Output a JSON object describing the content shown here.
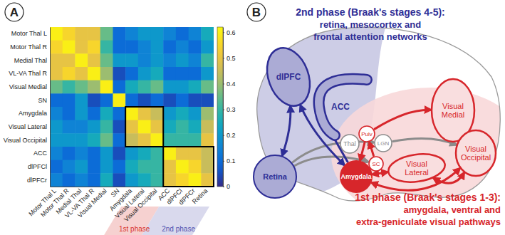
{
  "chart_data": {
    "type": "heatmap",
    "panel_label": "A",
    "rows": [
      "Motor Thal L",
      "Motor Thal R",
      "Medial Thal",
      "VL-VA Thal R",
      "Visual Medial",
      "SN",
      "Amygdala",
      "Visual Lateral",
      "Visual Occipital",
      "ACC",
      "dlPFCl",
      "dlPFCr"
    ],
    "columns": [
      "Motor Thal L",
      "Motor Thal R",
      "Medial Thal",
      "VL-VA Thal R",
      "Visual Medial",
      "SN",
      "Amygdala",
      "Visual Lateral",
      "Visual Occipital",
      "ACC",
      "dlPFCl",
      "dlPFCr",
      "Retina"
    ],
    "values": [
      [
        0.6,
        0.55,
        0.5,
        0.5,
        0.35,
        0.1,
        0.15,
        0.2,
        0.2,
        0.15,
        0.1,
        0.15,
        0.25
      ],
      [
        0.55,
        0.6,
        0.5,
        0.55,
        0.3,
        0.1,
        0.1,
        0.15,
        0.2,
        0.1,
        0.15,
        0.1,
        0.2
      ],
      [
        0.5,
        0.5,
        0.6,
        0.5,
        0.35,
        0.2,
        0.2,
        0.15,
        0.2,
        0.15,
        0.2,
        0.15,
        0.3
      ],
      [
        0.5,
        0.55,
        0.5,
        0.6,
        0.4,
        0.05,
        0.1,
        0.2,
        0.25,
        0.1,
        0.1,
        0.1,
        0.2
      ],
      [
        0.35,
        0.3,
        0.35,
        0.4,
        0.6,
        0.1,
        0.25,
        0.3,
        0.35,
        0.2,
        0.2,
        0.25,
        0.35
      ],
      [
        0.1,
        0.1,
        0.2,
        0.05,
        0.1,
        0.6,
        0.1,
        0.05,
        0.1,
        0.05,
        0.1,
        0.05,
        0.05
      ],
      [
        0.15,
        0.1,
        0.2,
        0.1,
        0.25,
        0.1,
        0.6,
        0.5,
        0.45,
        0.2,
        0.25,
        0.2,
        0.4
      ],
      [
        0.2,
        0.15,
        0.15,
        0.2,
        0.3,
        0.05,
        0.5,
        0.6,
        0.5,
        0.25,
        0.3,
        0.25,
        0.45
      ],
      [
        0.2,
        0.2,
        0.2,
        0.25,
        0.35,
        0.1,
        0.45,
        0.5,
        0.6,
        0.3,
        0.3,
        0.3,
        0.5
      ],
      [
        0.15,
        0.1,
        0.15,
        0.1,
        0.2,
        0.05,
        0.2,
        0.25,
        0.3,
        0.6,
        0.5,
        0.5,
        0.45
      ],
      [
        0.1,
        0.15,
        0.2,
        0.1,
        0.2,
        0.1,
        0.25,
        0.3,
        0.3,
        0.5,
        0.6,
        0.55,
        0.45
      ],
      [
        0.15,
        0.1,
        0.15,
        0.1,
        0.25,
        0.05,
        0.2,
        0.25,
        0.3,
        0.5,
        0.55,
        0.6,
        0.5
      ]
    ],
    "colorbar": {
      "range": [
        0,
        0.62
      ],
      "ticks": [
        0,
        0.1,
        0.2,
        0.3,
        0.4,
        0.5,
        0.6
      ]
    },
    "phases": [
      {
        "label": "1st phase",
        "regions": [
          "Amygdala",
          "Visual Lateral",
          "Visual Occipital"
        ],
        "color": "#d9322c"
      },
      {
        "label": "2nd phase",
        "regions": [
          "ACC",
          "dlPFCl",
          "dlPFCr",
          "Retina"
        ],
        "color": "#5252b0"
      }
    ]
  },
  "diagram": {
    "panel_label": "B",
    "phases": [
      {
        "title": "2nd phase (Braak's stages 4-5):",
        "description": [
          "retina, mesocortex and",
          "frontal attention networks"
        ],
        "color": "#2e2e96"
      },
      {
        "title": "1st phase (Braak's stages 1-3):",
        "description": [
          "amygdala, ventral and",
          "extra-geniculate visual pathways"
        ],
        "color": "#d7262b"
      }
    ],
    "nodes": [
      {
        "label": "dlPFC",
        "color": "#2e2e96"
      },
      {
        "label": "ACC",
        "color": "#2e2e96"
      },
      {
        "label": "Retina",
        "color": "#2e2e96"
      },
      {
        "label": "Thal",
        "color": "#8c8c8c"
      },
      {
        "label": "Pulv",
        "color": "#d7262b"
      },
      {
        "label": "LGN",
        "color": "#8c8c8c"
      },
      {
        "label": "SC",
        "color": "#d7262b"
      },
      {
        "label": "Amygdala",
        "color": "#d7262b"
      },
      {
        "label": "Visual Medial",
        "color": "#d7262b"
      },
      {
        "label": "Visual Lateral",
        "color": "#d7262b"
      },
      {
        "label": "Visual Occipital",
        "color": "#d7262b"
      }
    ],
    "edges": [
      {
        "from": "Retina",
        "to": "LGN",
        "color": "#8c8c8c",
        "arrow": "end"
      },
      {
        "from": "Retina",
        "to": "SC",
        "color": "#8c8c8c",
        "arrow": "end"
      },
      {
        "from": "LGN",
        "to": "Visual Occipital",
        "color": "#8c8c8c",
        "arrow": "end"
      },
      {
        "from": "Retina",
        "to": "dlPFC",
        "color": "#2e2e96",
        "arrow": "both"
      },
      {
        "from": "Amygdala",
        "to": "dlPFC",
        "color": "#2e2e96",
        "arrow": "both"
      },
      {
        "from": "Amygdala",
        "to": "ACC",
        "color": "#2e2e96",
        "arrow": "end"
      },
      {
        "from": "SC",
        "to": "Pulv",
        "color": "#d7262b",
        "arrow": "end"
      },
      {
        "from": "Pulv",
        "to": "Amygdala",
        "color": "#d7262b",
        "arrow": "end"
      },
      {
        "from": "Pulv",
        "to": "Visual Medial",
        "color": "#d7262b",
        "arrow": "end"
      },
      {
        "from": "Amygdala",
        "to": "Visual Lateral",
        "color": "#d7262b",
        "arrow": "both"
      },
      {
        "from": "Visual Lateral",
        "to": "Visual Occipital",
        "color": "#d7262b",
        "arrow": "both"
      },
      {
        "from": "Amygdala",
        "to": "Visual Occipital",
        "color": "#d7262b",
        "arrow": "both"
      }
    ]
  }
}
